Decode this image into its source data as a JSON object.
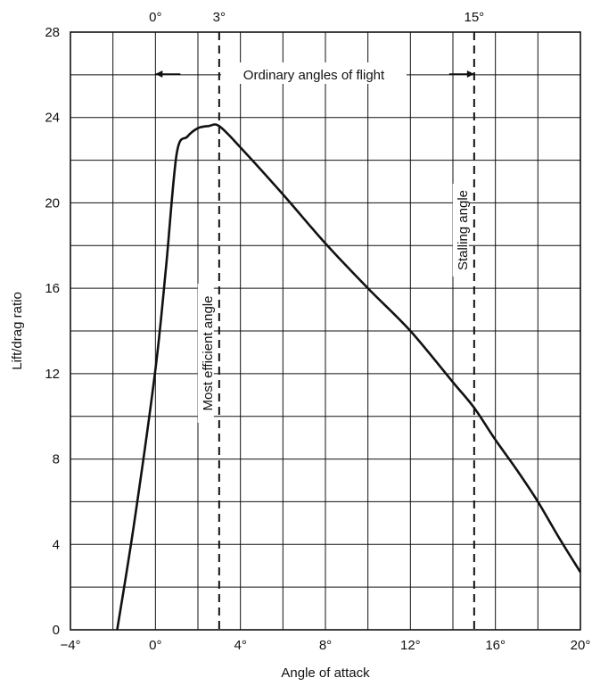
{
  "chart_data": {
    "type": "line",
    "xlabel": "Angle of attack",
    "ylabel": "Lift/drag ratio",
    "xlim": [
      -4,
      20
    ],
    "ylim": [
      0,
      28
    ],
    "x_ticks": [
      {
        "value": -4,
        "label": "−4°"
      },
      {
        "value": 0,
        "label": "0°"
      },
      {
        "value": 4,
        "label": "4°"
      },
      {
        "value": 8,
        "label": "8°"
      },
      {
        "value": 12,
        "label": "12°"
      },
      {
        "value": 16,
        "label": "16°"
      },
      {
        "value": 20,
        "label": "20°"
      }
    ],
    "y_ticks": [
      {
        "value": 0,
        "label": "0"
      },
      {
        "value": 4,
        "label": "4"
      },
      {
        "value": 8,
        "label": "8"
      },
      {
        "value": 12,
        "label": "12"
      },
      {
        "value": 16,
        "label": "16"
      },
      {
        "value": 20,
        "label": "20"
      },
      {
        "value": 24,
        "label": "24"
      },
      {
        "value": 28,
        "label": "28"
      }
    ],
    "top_labels": [
      {
        "value": 0,
        "label": "0°"
      },
      {
        "value": 3,
        "label": "3°"
      },
      {
        "value": 15,
        "label": "15°"
      }
    ],
    "grid": true,
    "grid_step_x": 2,
    "grid_step_y": 2,
    "series": [
      {
        "x": [
          -1.8,
          -1,
          0,
          0.5,
          1,
          1.5,
          2,
          2.5,
          3,
          4,
          6,
          8,
          10,
          12,
          14,
          15,
          16,
          17,
          18,
          19,
          20
        ],
        "y": [
          0,
          5,
          12.2,
          17,
          22.3,
          23.1,
          23.5,
          23.6,
          23.6,
          22.6,
          20.4,
          18.1,
          16.0,
          14.0,
          11.6,
          10.4,
          8.9,
          7.5,
          6.0,
          4.3,
          2.7
        ]
      }
    ],
    "reference_lines": [
      {
        "x": 3,
        "label": "Most efficient angle",
        "style": "dashed"
      },
      {
        "x": 15,
        "label": "Stalling angle",
        "style": "dashed"
      }
    ],
    "range_annotation": {
      "from": 0,
      "to": 15,
      "label": "Ordinary angles of flight"
    }
  },
  "colors": {
    "line": "#111111",
    "grid": "#111111",
    "background": "#ffffff"
  }
}
